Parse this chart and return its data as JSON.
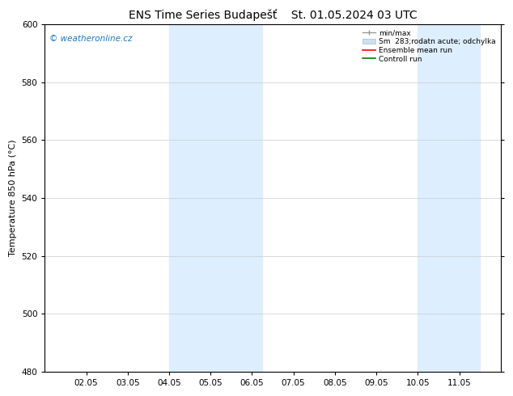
{
  "title_left": "ENS Time Series Budapešť",
  "title_right": "St. 01.05.2024 03 UTC",
  "ylabel": "Temperature 850 hPa (°C)",
  "ylim": [
    480,
    600
  ],
  "yticks": [
    480,
    500,
    520,
    540,
    560,
    580,
    600
  ],
  "xtick_labels": [
    "02.05",
    "03.05",
    "04.05",
    "05.05",
    "06.05",
    "07.05",
    "08.05",
    "09.05",
    "10.05",
    "11.05"
  ],
  "xtick_positions": [
    1,
    2,
    3,
    4,
    5,
    6,
    7,
    8,
    9,
    10
  ],
  "xlim": [
    0,
    11.0
  ],
  "shaded_bands": [
    {
      "x_start": 3.0,
      "x_end": 5.25,
      "color": "#ddeeff"
    },
    {
      "x_start": 9.0,
      "x_end": 10.5,
      "color": "#ddeeff"
    }
  ],
  "watermark_text": "© weatheronline.cz",
  "watermark_color": "#1a7abf",
  "legend_labels": [
    "min/max",
    "Sm  283;rodatn acute; odchylka",
    "Ensemble mean run",
    "Controll run"
  ],
  "legend_colors": [
    "#aaaaaa",
    "#cce0f0",
    "red",
    "green"
  ],
  "bg_color": "#ffffff",
  "plot_bg_color": "#ffffff",
  "grid_color": "#cccccc",
  "title_fontsize": 10,
  "axis_fontsize": 8,
  "tick_fontsize": 7.5
}
